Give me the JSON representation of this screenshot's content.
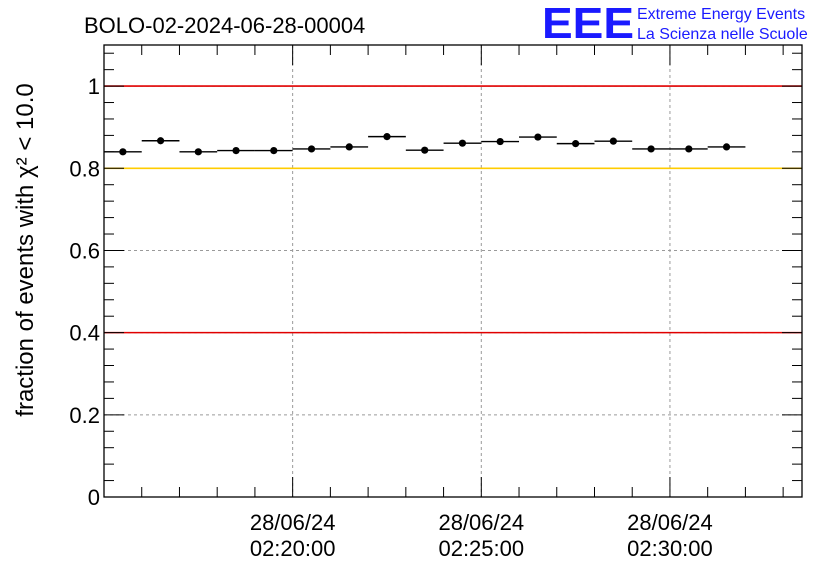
{
  "chart_data": {
    "type": "scatter",
    "title": "BOLO-02-2024-06-28-00004",
    "ylabel": "fraction of events with χ² < 10.0",
    "ylim": [
      0,
      1.1
    ],
    "x_axis_kind": "time",
    "xlim": [
      "28/06/24 02:15:00",
      "28/06/24 02:33:30"
    ],
    "x_tick_labels": [
      {
        "date": "28/06/24",
        "time": "02:20:00"
      },
      {
        "date": "28/06/24",
        "time": "02:25:00"
      },
      {
        "date": "28/06/24",
        "time": "02:30:00"
      }
    ],
    "y_ticks": [
      0,
      0.2,
      0.4,
      0.6,
      0.8,
      1
    ],
    "y_tick_labels": [
      "0",
      "0.2",
      "0.4",
      "0.6",
      "0.8",
      "1"
    ],
    "grid": true,
    "reference_lines": [
      {
        "y": 1.0,
        "color": "#e00000"
      },
      {
        "y": 0.8,
        "color": "#ffcc00"
      },
      {
        "y": 0.4,
        "color": "#e00000"
      }
    ],
    "series": [
      {
        "marker_color": "#000000",
        "points": [
          {
            "x": "02:15:30",
            "y": 0.84
          },
          {
            "x": "02:16:30",
            "y": 0.867
          },
          {
            "x": "02:17:30",
            "y": 0.84
          },
          {
            "x": "02:18:30",
            "y": 0.843
          },
          {
            "x": "02:19:30",
            "y": 0.843
          },
          {
            "x": "02:20:30",
            "y": 0.847
          },
          {
            "x": "02:21:30",
            "y": 0.852
          },
          {
            "x": "02:22:30",
            "y": 0.877
          },
          {
            "x": "02:23:30",
            "y": 0.844
          },
          {
            "x": "02:24:30",
            "y": 0.861
          },
          {
            "x": "02:25:30",
            "y": 0.865
          },
          {
            "x": "02:26:30",
            "y": 0.876
          },
          {
            "x": "02:27:30",
            "y": 0.86
          },
          {
            "x": "02:28:30",
            "y": 0.866
          },
          {
            "x": "02:29:30",
            "y": 0.847
          },
          {
            "x": "02:30:30",
            "y": 0.847
          },
          {
            "x": "02:31:30",
            "y": 0.852
          }
        ],
        "bin_width_seconds": 60
      }
    ]
  },
  "logo": {
    "letters": "EEE",
    "line1": "Extreme Energy Events",
    "line2": "La Scienza nelle Scuole"
  }
}
